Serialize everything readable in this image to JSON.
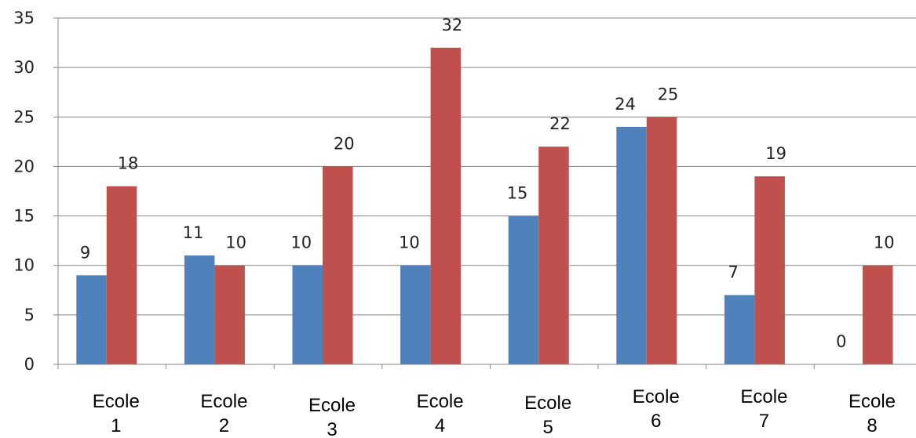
{
  "chart_data": {
    "type": "bar",
    "title": "",
    "xlabel": "",
    "ylabel": "",
    "categories": [
      [
        "Ecole",
        "1"
      ],
      [
        "Ecole",
        "2"
      ],
      [
        "Ecole",
        "3"
      ],
      [
        "Ecole",
        "4"
      ],
      [
        "Ecole",
        "5"
      ],
      [
        "Ecole",
        "6"
      ],
      [
        "Ecole",
        "7"
      ],
      [
        "Ecole",
        "8"
      ]
    ],
    "series": [
      {
        "values": [
          9,
          11,
          10,
          10,
          15,
          24,
          7,
          0
        ],
        "color": "#4f81bd"
      },
      {
        "values": [
          18,
          10,
          20,
          32,
          22,
          25,
          19,
          10
        ],
        "color": "#c0504d"
      }
    ],
    "ylim": [
      0,
      35
    ],
    "yticks": [
      0,
      5,
      10,
      15,
      20,
      25,
      30,
      35
    ],
    "grid": true,
    "legend": "none",
    "data_labels": true
  }
}
